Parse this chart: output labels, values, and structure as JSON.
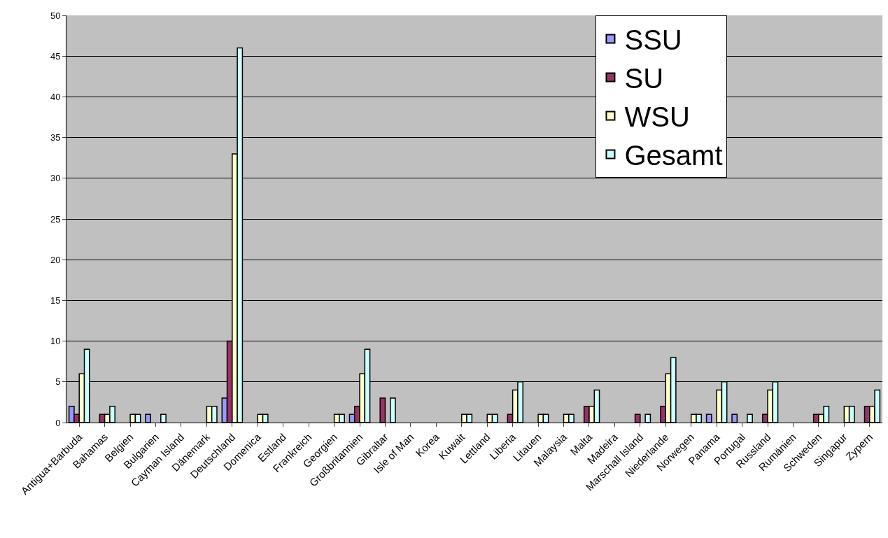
{
  "chart_data": {
    "type": "bar",
    "categories": [
      "Antigua+Barbuda",
      "Bahamas",
      "Belgien",
      "Bulgarien",
      "Cayman Island",
      "Dänemark",
      "Deutschland",
      "Domenica",
      "Estland",
      "Frankreich",
      "Georgien",
      "Großbritannien",
      "Gibraltar",
      "Isle of Man",
      "Korea",
      "Kuwait",
      "Lettland",
      "Liberia",
      "Litauen",
      "Malaysia",
      "Malta",
      "Madeira",
      "Marschall Island",
      "Niederlande",
      "Norwegen",
      "Panama",
      "Portugal",
      "Russland",
      "Rumänien",
      "Schweden",
      "Singapur",
      "Zypern"
    ],
    "series": [
      {
        "name": "SSU",
        "color": "#9999ff",
        "values": [
          2,
          null,
          null,
          1,
          null,
          null,
          3,
          null,
          null,
          null,
          null,
          1,
          null,
          null,
          null,
          null,
          null,
          null,
          null,
          null,
          null,
          null,
          null,
          null,
          null,
          1,
          1,
          null,
          null,
          null,
          null,
          null
        ]
      },
      {
        "name": "SU",
        "color": "#993366",
        "values": [
          1,
          1,
          null,
          null,
          null,
          null,
          10,
          null,
          null,
          null,
          null,
          2,
          3,
          null,
          null,
          null,
          null,
          1,
          null,
          null,
          2,
          null,
          1,
          2,
          null,
          null,
          null,
          1,
          null,
          1,
          null,
          2
        ]
      },
      {
        "name": "WSU",
        "color": "#ffffcc",
        "values": [
          6,
          1,
          1,
          null,
          null,
          2,
          33,
          1,
          null,
          null,
          1,
          6,
          null,
          null,
          null,
          1,
          1,
          4,
          1,
          1,
          2,
          null,
          null,
          6,
          1,
          4,
          null,
          4,
          null,
          1,
          2,
          2
        ]
      },
      {
        "name": "Gesamt",
        "color": "#ccffff",
        "values": [
          9,
          2,
          1,
          1,
          null,
          2,
          46,
          1,
          null,
          null,
          1,
          9,
          3,
          null,
          null,
          1,
          1,
          5,
          1,
          1,
          4,
          null,
          1,
          8,
          1,
          5,
          1,
          5,
          null,
          2,
          2,
          4
        ]
      }
    ],
    "ylim": [
      0,
      50
    ],
    "yticks": [
      0,
      5,
      10,
      15,
      20,
      25,
      30,
      35,
      40,
      45,
      50
    ],
    "grid": "y",
    "legend": "top right"
  }
}
